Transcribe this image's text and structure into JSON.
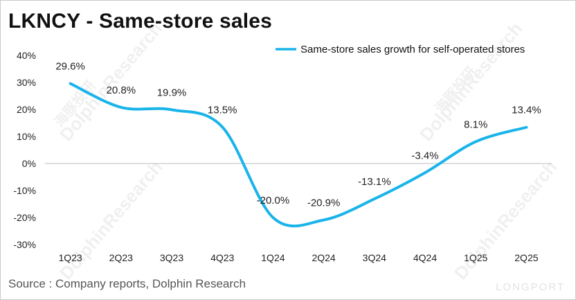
{
  "title": "LKNCY - Same-store sales",
  "source": "Source : Company reports, Dolphin Research",
  "watermark": {
    "brand": "DolphinResearch",
    "brand_cn": "海豚投研",
    "corner": "LONGPORT"
  },
  "colors": {
    "line": "#19b4ea",
    "axis": "#bdbdbd",
    "text": "#222222"
  },
  "chart_data": {
    "type": "line",
    "title": "LKNCY - Same-store sales",
    "categories": [
      "1Q23",
      "2Q23",
      "3Q23",
      "4Q23",
      "1Q24",
      "2Q24",
      "3Q24",
      "4Q24",
      "1Q25",
      "2Q25"
    ],
    "series": [
      {
        "name": "Same-store sales growth for self-operated stores",
        "values": [
          29.6,
          20.8,
          19.9,
          13.5,
          -20.0,
          -20.9,
          -13.1,
          -3.4,
          8.1,
          13.4
        ],
        "labels": [
          "29.6%",
          "20.8%",
          "19.9%",
          "13.5%",
          "-20.0%",
          "-20.9%",
          "-13.1%",
          "-3.4%",
          "8.1%",
          "13.4%"
        ]
      }
    ],
    "ylim": [
      -30,
      40
    ],
    "yticks": [
      40,
      30,
      20,
      10,
      0,
      -10,
      -20,
      -30
    ],
    "ytick_labels": [
      "40%",
      "30%",
      "20%",
      "10%",
      "0%",
      "-10%",
      "-20%",
      "-30%"
    ],
    "xlabel": "",
    "ylabel": "",
    "legend": "top-right",
    "grid": false
  }
}
